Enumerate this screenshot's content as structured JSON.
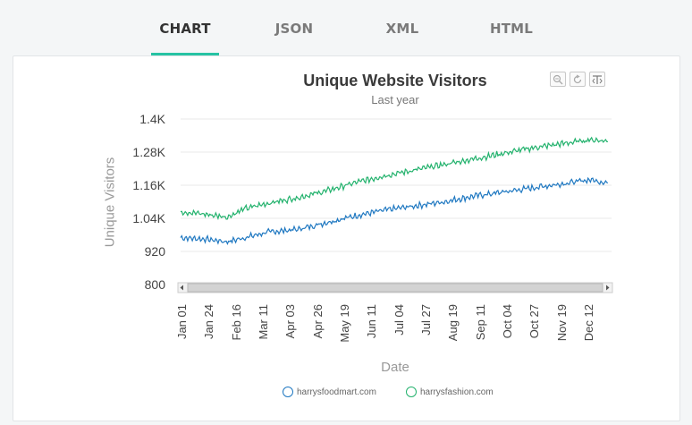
{
  "tabs": [
    {
      "label": "CHART",
      "active": true
    },
    {
      "label": "JSON",
      "active": false
    },
    {
      "label": "XML",
      "active": false
    },
    {
      "label": "HTML",
      "active": false
    }
  ],
  "toolbar": {
    "icons": [
      "zoom-out-icon",
      "reset-zoom-icon",
      "pin-icon"
    ]
  },
  "chart_data": {
    "type": "line",
    "title": "Unique Website Visitors",
    "subtitle": "Last year",
    "xlabel": "Date",
    "ylabel": "Unique Visitors",
    "ylim": [
      800,
      1400
    ],
    "yticks": [
      "1.4K",
      "1.28K",
      "1.16K",
      "1.04K",
      "920",
      "800"
    ],
    "x_ticks": [
      "Jan 01",
      "Jan 24",
      "Feb 16",
      "Mar 11",
      "Apr 03",
      "Apr 26",
      "May 19",
      "Jun 11",
      "Jul 04",
      "Jul 27",
      "Aug 19",
      "Sep 11",
      "Oct 04",
      "Oct 27",
      "Nov 19",
      "Dec 12"
    ],
    "x_range_days": [
      0,
      365
    ],
    "series": [
      {
        "name": "harrysfoodmart.com",
        "color": "#1f78c1",
        "anchors": [
          [
            0,
            970
          ],
          [
            20,
            965
          ],
          [
            40,
            955
          ],
          [
            55,
            970
          ],
          [
            75,
            990
          ],
          [
            100,
            1000
          ],
          [
            125,
            1025
          ],
          [
            150,
            1050
          ],
          [
            175,
            1070
          ],
          [
            200,
            1085
          ],
          [
            225,
            1100
          ],
          [
            250,
            1120
          ],
          [
            275,
            1135
          ],
          [
            300,
            1150
          ],
          [
            325,
            1165
          ],
          [
            350,
            1180
          ],
          [
            365,
            1168
          ]
        ]
      },
      {
        "name": "harrysfashion.com",
        "color": "#23b26d",
        "anchors": [
          [
            0,
            1065
          ],
          [
            20,
            1055
          ],
          [
            40,
            1045
          ],
          [
            55,
            1075
          ],
          [
            75,
            1095
          ],
          [
            100,
            1115
          ],
          [
            125,
            1140
          ],
          [
            150,
            1170
          ],
          [
            175,
            1195
          ],
          [
            200,
            1215
          ],
          [
            225,
            1235
          ],
          [
            250,
            1255
          ],
          [
            275,
            1275
          ],
          [
            300,
            1295
          ],
          [
            325,
            1310
          ],
          [
            350,
            1325
          ],
          [
            365,
            1320
          ]
        ]
      }
    ],
    "legend_position": "bottom-center"
  }
}
